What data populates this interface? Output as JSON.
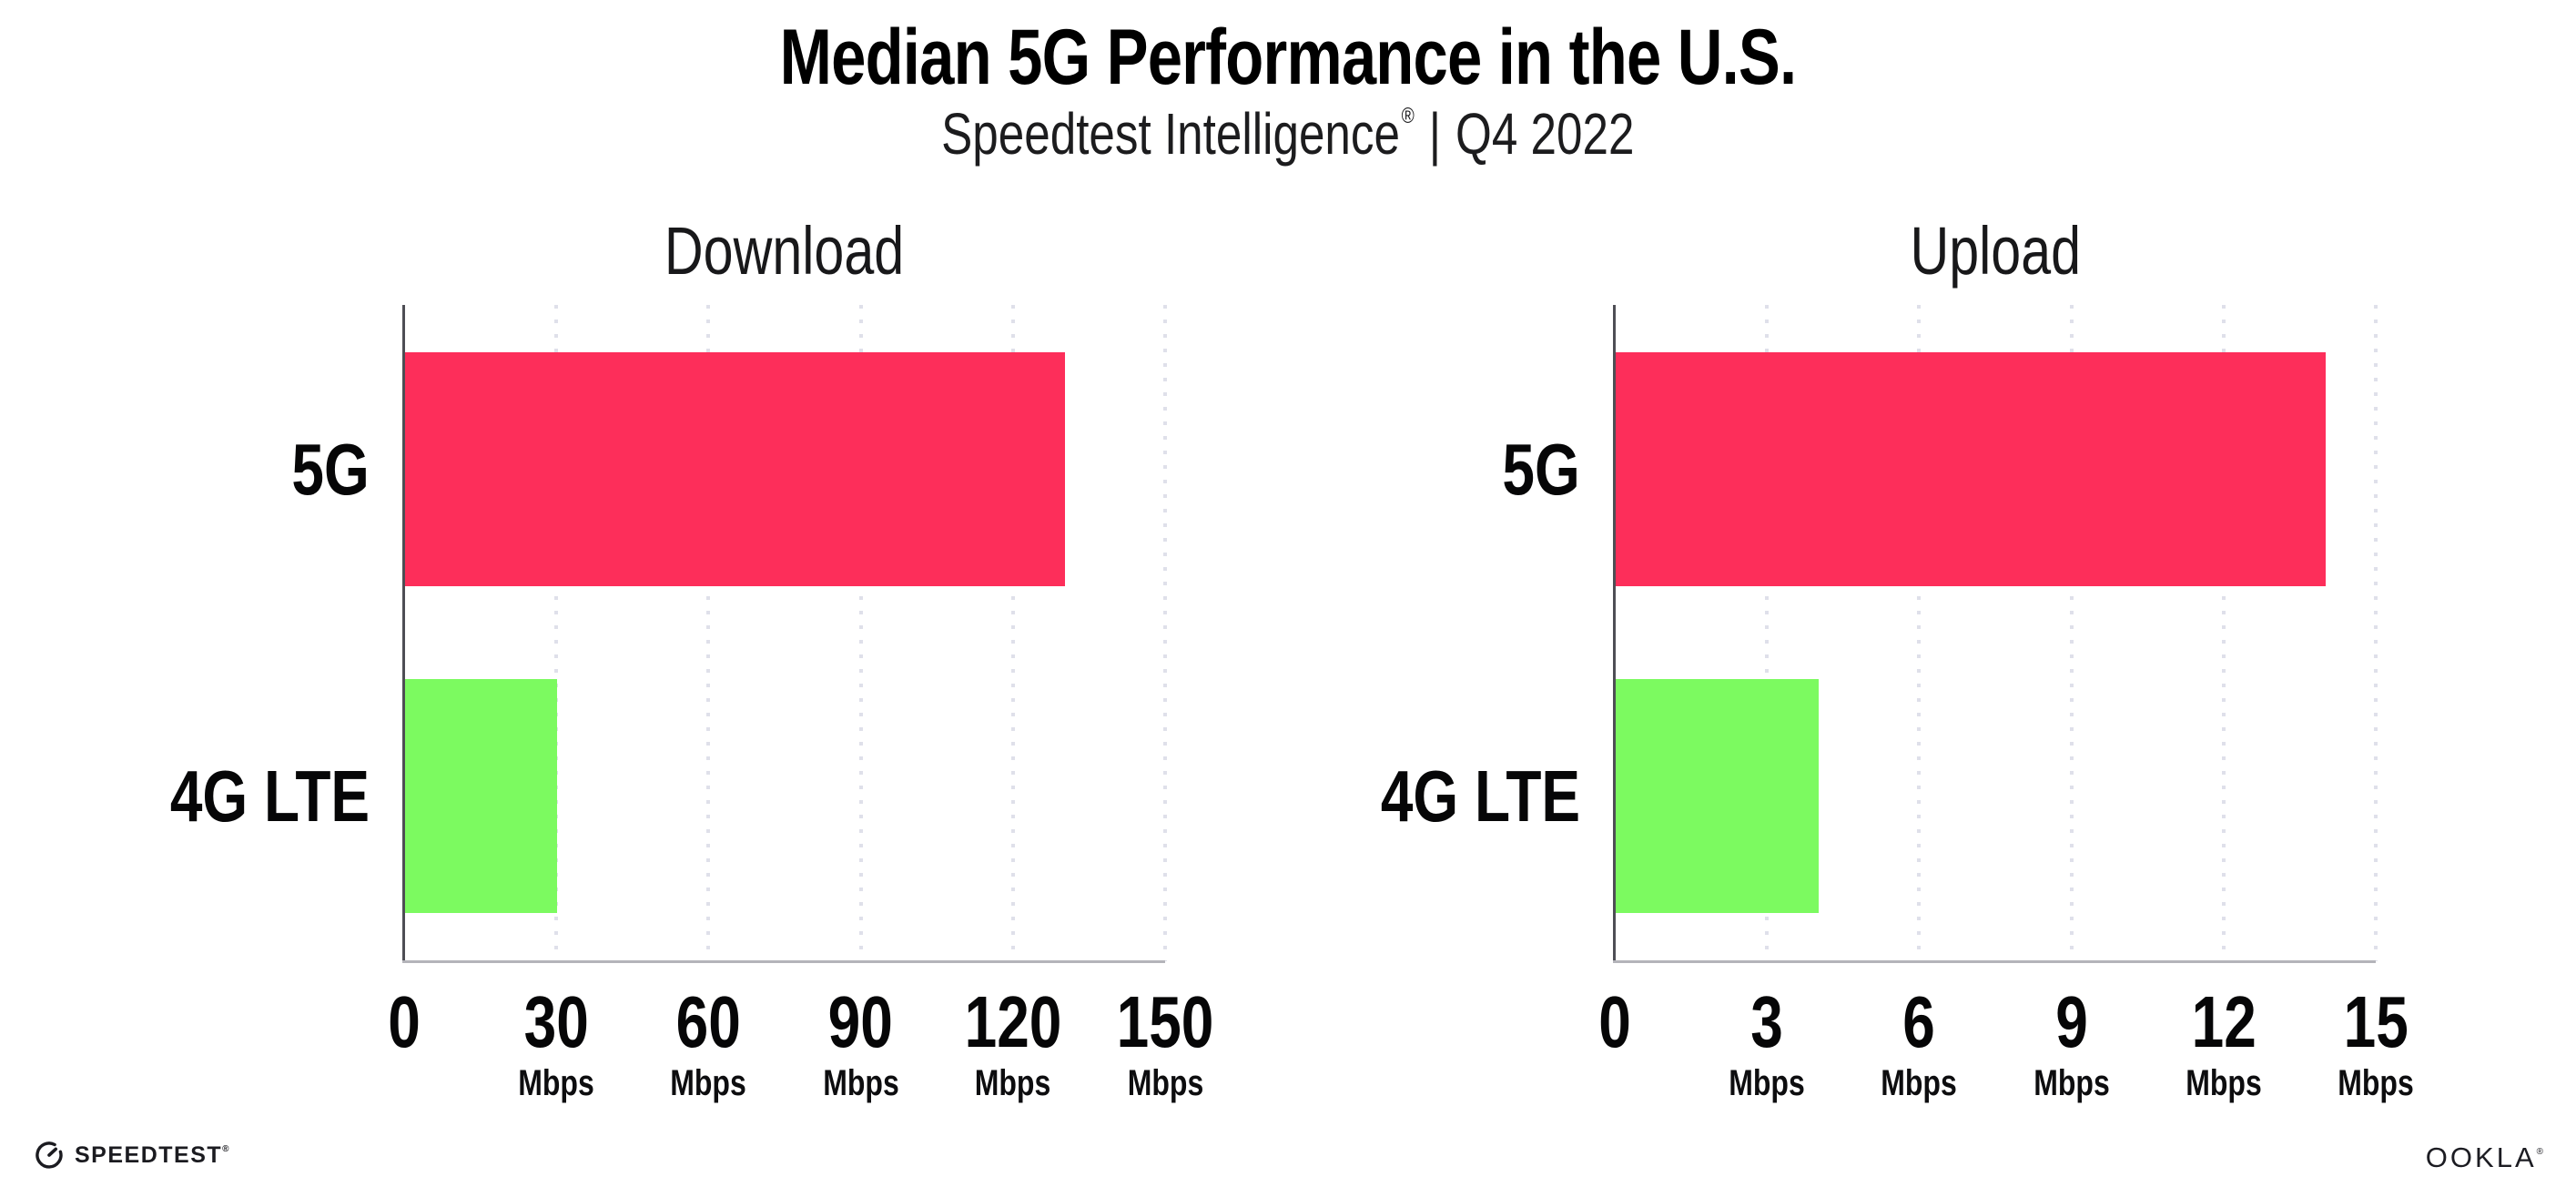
{
  "header": {
    "title": "Median 5G Performance in the U.S.",
    "subtitle_brand": "Speedtest Intelligence",
    "subtitle_reg": "®",
    "subtitle_sep": "|",
    "subtitle_period": "Q4 2022"
  },
  "footer": {
    "speedtest_wordmark": "SPEEDTEST",
    "speedtest_tm": "®",
    "ookla_wordmark": "OOKLA",
    "ookla_tm": "®"
  },
  "colors": {
    "bar_5g": "#fd2e5a",
    "bar_4g_lte": "#7cfa60",
    "y_axis_line": "#4e4e55",
    "x_axis_line": "#b4b4ba",
    "gridline": "#dfe0ea",
    "text": "#0b0b0d"
  },
  "chart_data": [
    {
      "type": "bar",
      "orientation": "horizontal",
      "title": "Download",
      "categories": [
        "5G",
        "4G LTE"
      ],
      "values": [
        130,
        30
      ],
      "unit": "Mbps",
      "xlim": [
        0,
        150
      ],
      "xticks": [
        0,
        30,
        60,
        90,
        120,
        150
      ],
      "bar_colors": [
        "#fd2e5a",
        "#7cfa60"
      ],
      "grid": "vertical-dotted",
      "legend": "none"
    },
    {
      "type": "bar",
      "orientation": "horizontal",
      "title": "Upload",
      "categories": [
        "5G",
        "4G LTE"
      ],
      "values": [
        14,
        4
      ],
      "unit": "Mbps",
      "xlim": [
        0,
        15
      ],
      "xticks": [
        0,
        3,
        6,
        9,
        12,
        15
      ],
      "bar_colors": [
        "#fd2e5a",
        "#7cfa60"
      ],
      "grid": "vertical-dotted",
      "legend": "none"
    }
  ]
}
